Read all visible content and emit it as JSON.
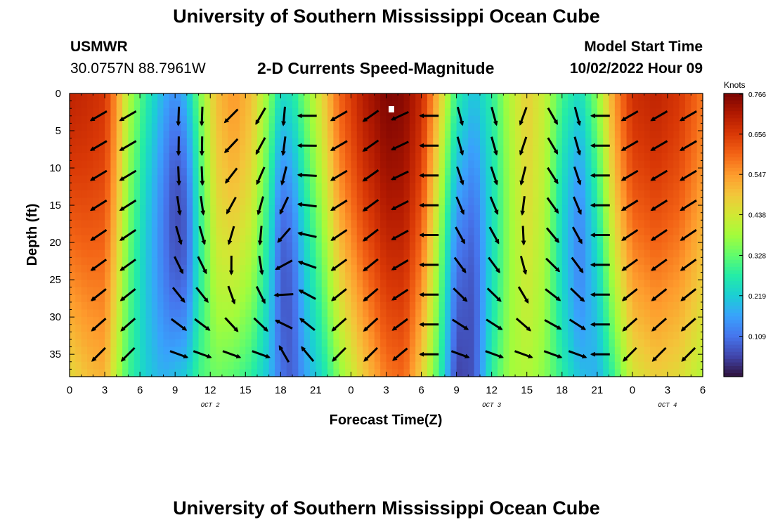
{
  "header": {
    "title": "University of Southern Mississippi Ocean Cube",
    "station_name": "USMWR",
    "station_coords": "30.0757N  88.7961W",
    "chart_title": "2-D Currents Speed-Magnitude",
    "model_start_label": "Model Start Time",
    "model_start_value": "10/02/2022 Hour 09"
  },
  "footer": {
    "title": "University of Southern Mississippi Ocean Cube"
  },
  "chart_data": {
    "type": "heatmap",
    "title": "2-D Currents Speed-Magnitude",
    "xlabel": "Forecast Time(Z)",
    "ylabel": "Depth (ft)",
    "x_hours_range": [
      0,
      54
    ],
    "y_depth_range": [
      0,
      38
    ],
    "x_tick_labels": [
      "0",
      "3",
      "6",
      "9",
      "12",
      "15",
      "18",
      "21",
      "0",
      "3",
      "6",
      "9",
      "12",
      "15",
      "18",
      "21",
      "0",
      "3",
      "6"
    ],
    "x_tick_hours": [
      0,
      3,
      6,
      9,
      12,
      15,
      18,
      21,
      24,
      27,
      30,
      33,
      36,
      39,
      42,
      45,
      48,
      51,
      54
    ],
    "y_tick_labels": [
      "0",
      "5",
      "10",
      "15",
      "20",
      "25",
      "30",
      "35"
    ],
    "y_tick_values": [
      0,
      5,
      10,
      15,
      20,
      25,
      30,
      35
    ],
    "date_labels": [
      {
        "text": "OCT 2",
        "hour": 12
      },
      {
        "text": "OCT 3",
        "hour": 36
      },
      {
        "text": "OCT 4",
        "hour": 51
      }
    ],
    "colorbar": {
      "unit": "Knots",
      "min": 0.0,
      "max": 0.766,
      "tick_labels": [
        "0.766",
        "0.656",
        "0.547",
        "0.438",
        "0.328",
        "0.219",
        "0.109"
      ],
      "tick_values": [
        0.766,
        0.656,
        0.547,
        0.438,
        0.328,
        0.219,
        0.109
      ],
      "colors": [
        "#30123b",
        "#4145ab",
        "#4675ed",
        "#39a2fc",
        "#1bcfd4",
        "#24eca6",
        "#61fc6c",
        "#a4fc3b",
        "#d1e834",
        "#f3c63a",
        "#fe9b2d",
        "#f36315",
        "#d93806",
        "#b11901",
        "#7a0402"
      ]
    },
    "speed_profile": {
      "hours": [
        0,
        1.5,
        3,
        4,
        5,
        6.5,
        8,
        9,
        10,
        11,
        12.5,
        14,
        15.5,
        17,
        18,
        19,
        20,
        21.5,
        23,
        25,
        27,
        28.5,
        30,
        31.5,
        33,
        34.5,
        36,
        37.5,
        39,
        40.5,
        42,
        43.5,
        45,
        46.5,
        48,
        50,
        52,
        54
      ],
      "surface": [
        0.69,
        0.68,
        0.66,
        0.55,
        0.4,
        0.28,
        0.18,
        0.14,
        0.2,
        0.34,
        0.5,
        0.55,
        0.5,
        0.36,
        0.24,
        0.26,
        0.34,
        0.46,
        0.6,
        0.7,
        0.76,
        0.75,
        0.68,
        0.5,
        0.28,
        0.2,
        0.28,
        0.4,
        0.48,
        0.42,
        0.3,
        0.24,
        0.36,
        0.55,
        0.67,
        0.69,
        0.66,
        0.58
      ],
      "bottom": [
        0.46,
        0.5,
        0.52,
        0.4,
        0.3,
        0.22,
        0.18,
        0.2,
        0.22,
        0.3,
        0.34,
        0.32,
        0.28,
        0.2,
        0.11,
        0.08,
        0.16,
        0.24,
        0.36,
        0.48,
        0.58,
        0.6,
        0.48,
        0.3,
        0.05,
        0.07,
        0.28,
        0.38,
        0.4,
        0.36,
        0.28,
        0.2,
        0.18,
        0.3,
        0.44,
        0.48,
        0.46,
        0.4
      ],
      "mid_dip": [
        0.0,
        0.0,
        0.0,
        0.0,
        0.02,
        0.04,
        0.06,
        0.1,
        0.12,
        0.06,
        0.0,
        0.0,
        0.0,
        0.04,
        0.1,
        0.08,
        0.04,
        0.02,
        0.0,
        0.0,
        0.0,
        0.0,
        0.0,
        0.04,
        0.06,
        0.06,
        0.04,
        0.02,
        0.0,
        0.0,
        0.06,
        0.1,
        0.04,
        0.0,
        0.0,
        0.0,
        0.0,
        0.0
      ]
    },
    "arrow_columns_hours": [
      2.5,
      5,
      9.3,
      11.3,
      13.8,
      16.3,
      18.3,
      20.3,
      23,
      25.7,
      28.2,
      30.7,
      33.3,
      36.2,
      38.7,
      41.2,
      43.3,
      45.3,
      47.8,
      50.3,
      52.8
    ],
    "arrow_rows_ft": [
      3,
      7,
      11,
      15,
      19,
      23,
      27,
      31,
      35
    ],
    "arrow_directions_deg": [
      150,
      150,
      92,
      92,
      135,
      120,
      95,
      180,
      150,
      145,
      155,
      180,
      75,
      75,
      110,
      60,
      75,
      180,
      150,
      150,
      150
    ],
    "arrow_directions_deep_deg": [
      135,
      135,
      20,
      20,
      20,
      20,
      240,
      230,
      135,
      135,
      140,
      180,
      20,
      20,
      20,
      20,
      20,
      180,
      135,
      135,
      135
    ]
  }
}
